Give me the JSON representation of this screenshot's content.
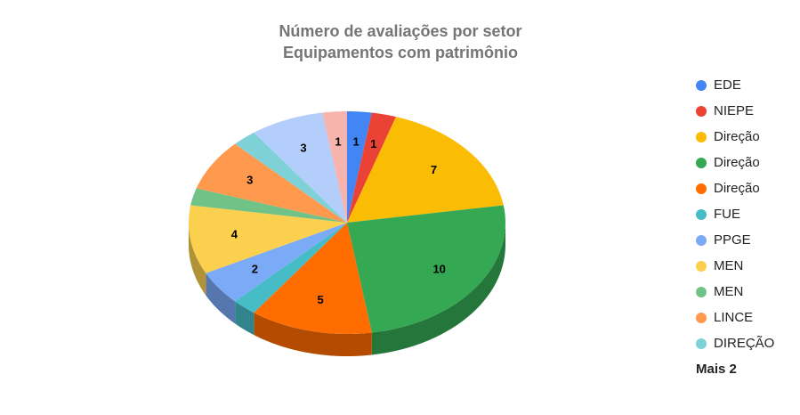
{
  "chart_data": {
    "type": "pie3d",
    "title": [
      "Número de avaliações por setor",
      "Equipamentos com patrimônio"
    ],
    "categories": [
      "EDE",
      "NIEPE",
      "Direção",
      "Direção",
      "Direção",
      "FUE",
      "PPGE",
      "MEN",
      "MEN",
      "LINCE",
      "DIREÇÃO",
      null,
      null
    ],
    "values": [
      1,
      1,
      7,
      10,
      5,
      1,
      2,
      4,
      1,
      3,
      1,
      3,
      1
    ],
    "value_labels": [
      "1",
      "1",
      "7",
      "10",
      "5",
      null,
      "2",
      "4",
      null,
      "3",
      null,
      "3",
      "1"
    ],
    "colors": [
      "#4285f4",
      "#ea4335",
      "#fbbc04",
      "#34a853",
      "#ff6d01",
      "#46bdc6",
      "#7baaf7",
      "#fcd04f",
      "#71c287",
      "#ff994d",
      "#7ed1d7",
      "#b3cefb",
      "#f7b4ae"
    ],
    "legend_more": "Mais 2",
    "legend_position": "right"
  }
}
